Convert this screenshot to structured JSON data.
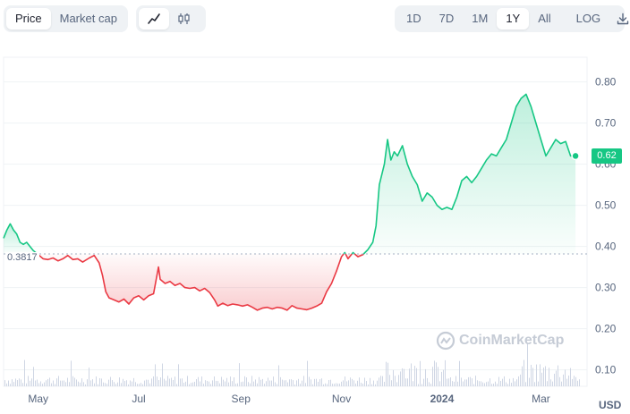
{
  "toolbar": {
    "metric_tabs": [
      {
        "label": "Price",
        "active": true
      },
      {
        "label": "Market cap",
        "active": false
      }
    ],
    "chart_type_icons": [
      {
        "icon": "line-chart-icon",
        "active": true
      },
      {
        "icon": "candlestick-icon",
        "active": false
      }
    ],
    "ranges": [
      {
        "label": "1D",
        "active": false
      },
      {
        "label": "7D",
        "active": false
      },
      {
        "label": "1M",
        "active": false
      },
      {
        "label": "1Y",
        "active": true
      },
      {
        "label": "All",
        "active": false
      }
    ],
    "log_label": "LOG",
    "download_icon": "download-icon"
  },
  "colors": {
    "up": "#16c784",
    "down": "#ea3943",
    "up_fill": "#16c784",
    "down_fill": "#ea3943",
    "grid": "#eff2f5",
    "ref_line": "#a6b0c3",
    "volume": "#cfd6e4"
  },
  "watermark": "CoinMarketCap",
  "currency": "USD",
  "chart_data": {
    "type": "line",
    "reference_value": 0.3817,
    "reference_label": "0.3817",
    "current_value": 0.62,
    "current_label": "0.62",
    "ylim": [
      0.06,
      0.86
    ],
    "yticks": [
      "0.10",
      "0.20",
      "0.30",
      "0.40",
      "0.50",
      "0.60",
      "0.70",
      "0.80"
    ],
    "ytick_values": [
      0.1,
      0.2,
      0.3,
      0.4,
      0.5,
      0.6,
      0.7,
      0.8
    ],
    "xlim": [
      "2023-04-10",
      "2024-03-29"
    ],
    "xticks": [
      {
        "label": "May",
        "date": "2023-05-01"
      },
      {
        "label": "Jul",
        "date": "2023-07-01"
      },
      {
        "label": "Sep",
        "date": "2023-09-01"
      },
      {
        "label": "Nov",
        "date": "2023-11-01"
      },
      {
        "label": "2024",
        "date": "2024-01-01",
        "bold": true
      },
      {
        "label": "Mar",
        "date": "2024-03-01"
      }
    ],
    "grid": true,
    "series": [
      {
        "values": [
          [
            "2023-04-10",
            0.42
          ],
          [
            "2023-04-12",
            0.44
          ],
          [
            "2023-04-14",
            0.455
          ],
          [
            "2023-04-16",
            0.44
          ],
          [
            "2023-04-18",
            0.43
          ],
          [
            "2023-04-20",
            0.41
          ],
          [
            "2023-04-22",
            0.405
          ],
          [
            "2023-04-24",
            0.41
          ],
          [
            "2023-04-26",
            0.4
          ],
          [
            "2023-04-28",
            0.39
          ],
          [
            "2023-05-01",
            0.38
          ],
          [
            "2023-05-04",
            0.37
          ],
          [
            "2023-05-07",
            0.368
          ],
          [
            "2023-05-10",
            0.372
          ],
          [
            "2023-05-13",
            0.365
          ],
          [
            "2023-05-16",
            0.37
          ],
          [
            "2023-05-19",
            0.378
          ],
          [
            "2023-05-22",
            0.368
          ],
          [
            "2023-05-25",
            0.37
          ],
          [
            "2023-05-28",
            0.362
          ],
          [
            "2023-06-01",
            0.372
          ],
          [
            "2023-06-04",
            0.378
          ],
          [
            "2023-06-07",
            0.36
          ],
          [
            "2023-06-09",
            0.33
          ],
          [
            "2023-06-11",
            0.29
          ],
          [
            "2023-06-13",
            0.275
          ],
          [
            "2023-06-16",
            0.27
          ],
          [
            "2023-06-19",
            0.265
          ],
          [
            "2023-06-22",
            0.272
          ],
          [
            "2023-06-25",
            0.26
          ],
          [
            "2023-06-28",
            0.275
          ],
          [
            "2023-07-01",
            0.28
          ],
          [
            "2023-07-04",
            0.27
          ],
          [
            "2023-07-07",
            0.28
          ],
          [
            "2023-07-10",
            0.285
          ],
          [
            "2023-07-13",
            0.35
          ],
          [
            "2023-07-14",
            0.32
          ],
          [
            "2023-07-17",
            0.31
          ],
          [
            "2023-07-20",
            0.315
          ],
          [
            "2023-07-23",
            0.305
          ],
          [
            "2023-07-26",
            0.31
          ],
          [
            "2023-07-29",
            0.3
          ],
          [
            "2023-08-01",
            0.298
          ],
          [
            "2023-08-04",
            0.3
          ],
          [
            "2023-08-07",
            0.292
          ],
          [
            "2023-08-10",
            0.298
          ],
          [
            "2023-08-13",
            0.288
          ],
          [
            "2023-08-16",
            0.27
          ],
          [
            "2023-08-18",
            0.255
          ],
          [
            "2023-08-21",
            0.262
          ],
          [
            "2023-08-24",
            0.256
          ],
          [
            "2023-08-27",
            0.26
          ],
          [
            "2023-08-30",
            0.258
          ],
          [
            "2023-09-02",
            0.255
          ],
          [
            "2023-09-05",
            0.258
          ],
          [
            "2023-09-08",
            0.252
          ],
          [
            "2023-09-11",
            0.245
          ],
          [
            "2023-09-14",
            0.25
          ],
          [
            "2023-09-17",
            0.252
          ],
          [
            "2023-09-20",
            0.248
          ],
          [
            "2023-09-23",
            0.252
          ],
          [
            "2023-09-26",
            0.25
          ],
          [
            "2023-09-29",
            0.245
          ],
          [
            "2023-10-02",
            0.256
          ],
          [
            "2023-10-05",
            0.25
          ],
          [
            "2023-10-08",
            0.248
          ],
          [
            "2023-10-11",
            0.246
          ],
          [
            "2023-10-14",
            0.25
          ],
          [
            "2023-10-17",
            0.255
          ],
          [
            "2023-10-20",
            0.262
          ],
          [
            "2023-10-23",
            0.29
          ],
          [
            "2023-10-26",
            0.31
          ],
          [
            "2023-10-29",
            0.34
          ],
          [
            "2023-11-01",
            0.375
          ],
          [
            "2023-11-03",
            0.385
          ],
          [
            "2023-11-05",
            0.37
          ],
          [
            "2023-11-08",
            0.385
          ],
          [
            "2023-11-11",
            0.375
          ],
          [
            "2023-11-14",
            0.38
          ],
          [
            "2023-11-17",
            0.392
          ],
          [
            "2023-11-20",
            0.41
          ],
          [
            "2023-11-22",
            0.45
          ],
          [
            "2023-11-24",
            0.55
          ],
          [
            "2023-11-27",
            0.6
          ],
          [
            "2023-11-29",
            0.66
          ],
          [
            "2023-12-01",
            0.61
          ],
          [
            "2023-12-03",
            0.63
          ],
          [
            "2023-12-05",
            0.62
          ],
          [
            "2023-12-08",
            0.645
          ],
          [
            "2023-12-11",
            0.6
          ],
          [
            "2023-12-14",
            0.57
          ],
          [
            "2023-12-17",
            0.55
          ],
          [
            "2023-12-20",
            0.51
          ],
          [
            "2023-12-23",
            0.53
          ],
          [
            "2023-12-26",
            0.52
          ],
          [
            "2023-12-29",
            0.5
          ],
          [
            "2024-01-01",
            0.49
          ],
          [
            "2024-01-04",
            0.495
          ],
          [
            "2024-01-07",
            0.49
          ],
          [
            "2024-01-10",
            0.52
          ],
          [
            "2024-01-13",
            0.56
          ],
          [
            "2024-01-16",
            0.57
          ],
          [
            "2024-01-19",
            0.555
          ],
          [
            "2024-01-22",
            0.57
          ],
          [
            "2024-01-25",
            0.59
          ],
          [
            "2024-01-28",
            0.61
          ],
          [
            "2024-01-31",
            0.625
          ],
          [
            "2024-02-03",
            0.62
          ],
          [
            "2024-02-06",
            0.64
          ],
          [
            "2024-02-09",
            0.66
          ],
          [
            "2024-02-12",
            0.7
          ],
          [
            "2024-02-15",
            0.74
          ],
          [
            "2024-02-18",
            0.76
          ],
          [
            "2024-02-21",
            0.77
          ],
          [
            "2024-02-24",
            0.74
          ],
          [
            "2024-02-27",
            0.7
          ],
          [
            "2024-03-01",
            0.66
          ],
          [
            "2024-03-04",
            0.62
          ],
          [
            "2024-03-07",
            0.64
          ],
          [
            "2024-03-10",
            0.66
          ],
          [
            "2024-03-13",
            0.65
          ],
          [
            "2024-03-16",
            0.655
          ],
          [
            "2024-03-19",
            0.62
          ],
          [
            "2024-03-22",
            0.62
          ]
        ]
      }
    ]
  }
}
